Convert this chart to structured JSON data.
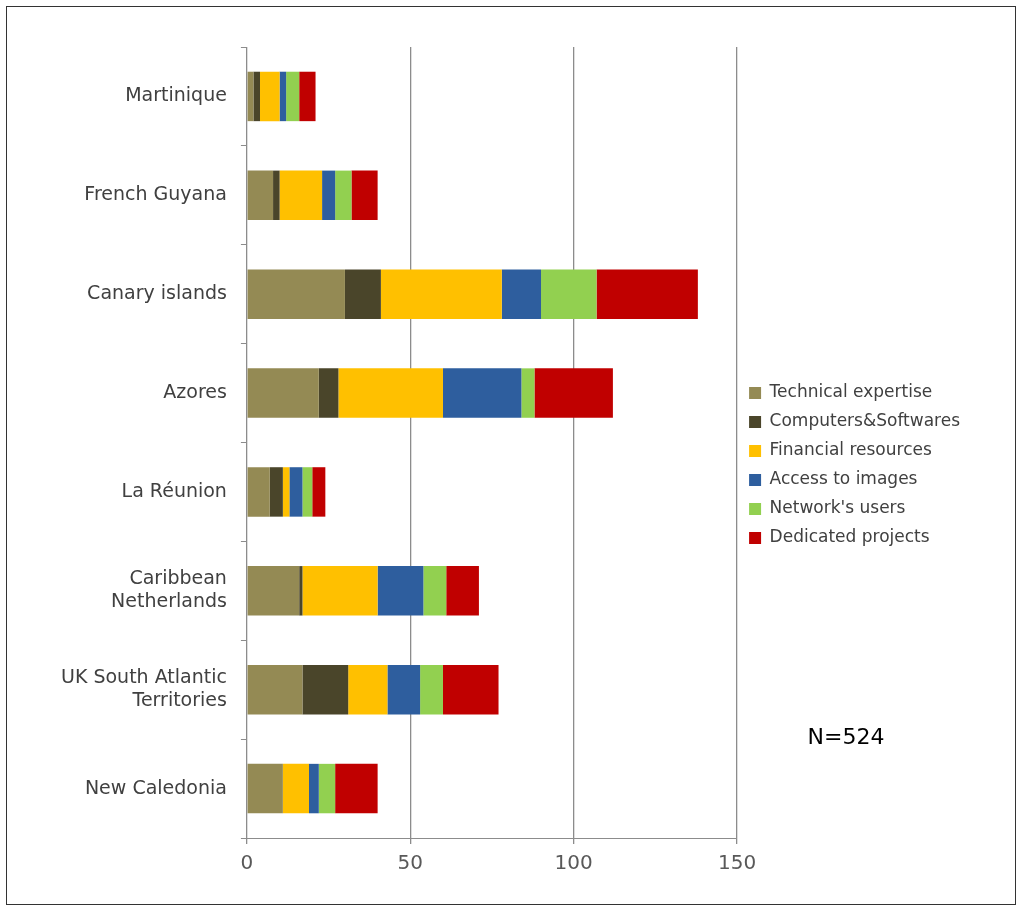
{
  "chart_data": {
    "type": "bar",
    "orientation": "horizontal",
    "stacked": true,
    "categories": [
      "Martinique",
      "French Guyana",
      "Canary islands",
      "Azores",
      "La Réunion",
      "Caribbean Netherlands",
      "UK South Atlantic Territories",
      "New Caledonia"
    ],
    "series": [
      {
        "name": "Technical expertise",
        "color": "#948a54",
        "values": [
          2,
          8,
          30,
          22,
          7,
          16,
          17,
          11
        ]
      },
      {
        "name": "Computers&Softwares",
        "color": "#4a452a",
        "values": [
          2,
          2,
          11,
          6,
          4,
          1,
          14,
          0
        ]
      },
      {
        "name": "Financial resources",
        "color": "#ffc000",
        "values": [
          6,
          13,
          37,
          32,
          2,
          23,
          12,
          8
        ]
      },
      {
        "name": "Access to images",
        "color": "#2e5e9e",
        "values": [
          2,
          4,
          12,
          24,
          4,
          14,
          10,
          3
        ]
      },
      {
        "name": "Network's users",
        "color": "#92d050",
        "values": [
          4,
          5,
          17,
          4,
          3,
          7,
          7,
          5
        ]
      },
      {
        "name": "Dedicated projects",
        "color": "#c00000",
        "values": [
          5,
          8,
          31,
          24,
          4,
          10,
          17,
          13
        ]
      }
    ],
    "xlim": [
      0,
      150
    ],
    "xticks": [
      0,
      50,
      100,
      150
    ],
    "grid": "x",
    "legend": "right",
    "annotations": [
      "N=524"
    ]
  }
}
